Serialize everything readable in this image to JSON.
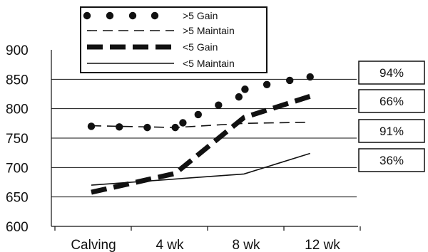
{
  "chart_data": {
    "type": "line",
    "title": "",
    "xlabel": "",
    "ylabel": "",
    "categories": [
      "Calving",
      "4 wk",
      "8 wk",
      "12 wk"
    ],
    "ylim": [
      600,
      900
    ],
    "yticks": [
      600,
      650,
      700,
      750,
      800,
      850,
      900
    ],
    "grid": "horizontal",
    "legend_position": "top-left",
    "series": [
      {
        "name": ">5 Gain",
        "style": "dots",
        "points": [
          {
            "x": 0.0,
            "y": 770
          },
          {
            "x": 0.55,
            "y": 769
          },
          {
            "x": 1.1,
            "y": 768
          },
          {
            "x": 1.65,
            "y": 768
          },
          {
            "x": 1.8,
            "y": 776
          },
          {
            "x": 2.1,
            "y": 790
          },
          {
            "x": 2.5,
            "y": 806
          },
          {
            "x": 2.9,
            "y": 820
          },
          {
            "x": 3.02,
            "y": 833
          },
          {
            "x": 3.45,
            "y": 841
          },
          {
            "x": 3.9,
            "y": 848
          },
          {
            "x": 4.3,
            "y": 854
          }
        ]
      },
      {
        "name": ">5 Maintain",
        "style": "dashed",
        "points": [
          {
            "x": 0.0,
            "y": 771
          },
          {
            "x": 1.65,
            "y": 768
          },
          {
            "x": 3.0,
            "y": 775
          },
          {
            "x": 4.3,
            "y": 777
          }
        ]
      },
      {
        "name": "<5 Gain",
        "style": "thick-dashed",
        "points": [
          {
            "x": 0.0,
            "y": 658
          },
          {
            "x": 1.65,
            "y": 690
          },
          {
            "x": 3.0,
            "y": 785
          },
          {
            "x": 4.3,
            "y": 821
          }
        ]
      },
      {
        "name": "<5 Maintain",
        "style": "solid",
        "points": [
          {
            "x": 0.0,
            "y": 670
          },
          {
            "x": 3.0,
            "y": 689
          },
          {
            "x": 4.3,
            "y": 724
          }
        ]
      }
    ],
    "annotations": [
      {
        "text": "94%",
        "y": 850
      },
      {
        "text": "66%",
        "y": 805
      },
      {
        "text": "91%",
        "y": 764
      },
      {
        "text": "36%",
        "y": 717
      }
    ]
  }
}
